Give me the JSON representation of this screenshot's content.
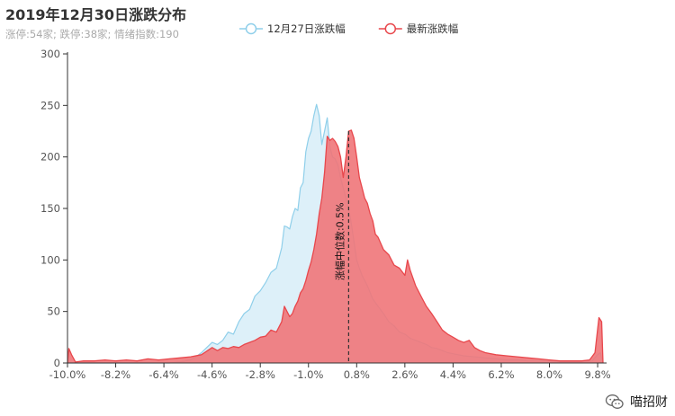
{
  "chart": {
    "title": "2019年12月30日涨跌分布",
    "subtitle": "涨停:54家; 跌停:38家; 情绪指数:190"
  },
  "watermark": {
    "label": "喵招财"
  },
  "colors": {
    "previous": "#8fcfea",
    "previous_fill": "#dbeff9",
    "latest": "#e8474c",
    "latest_fill": "#f07679",
    "axis": "#333333"
  },
  "chart_data": {
    "type": "area",
    "xlabel": "",
    "ylabel": "",
    "xlim": [
      -10.0,
      10.0
    ],
    "ylim": [
      0,
      300
    ],
    "x_ticks": [
      -10.0,
      -8.2,
      -6.4,
      -4.6,
      -2.8,
      -1.0,
      0.8,
      2.6,
      4.4,
      6.2,
      8.0,
      9.8
    ],
    "x_tick_labels": [
      "-10.0%",
      "-8.2%",
      "-6.4%",
      "-4.6%",
      "-2.8%",
      "-1.0%",
      "0.8%",
      "2.6%",
      "4.4%",
      "6.2%",
      "8.0%",
      "9.8%"
    ],
    "y_ticks": [
      0,
      50,
      100,
      150,
      200,
      250,
      300
    ],
    "y_tick_labels": [
      "0",
      "50",
      "100",
      "150",
      "200",
      "250",
      "300"
    ],
    "legend_position": "top-center",
    "median_line": {
      "x": 0.5,
      "label": "涨幅中位数:0.5%"
    },
    "series": [
      {
        "name": "12月27日涨跌幅",
        "color": "#8fcfea",
        "points": [
          [
            -10.0,
            0
          ],
          [
            -9.8,
            0
          ],
          [
            -9.4,
            0
          ],
          [
            -9.0,
            0
          ],
          [
            -8.6,
            0
          ],
          [
            -8.2,
            0
          ],
          [
            -7.8,
            0
          ],
          [
            -7.4,
            0
          ],
          [
            -7.0,
            0
          ],
          [
            -6.6,
            0
          ],
          [
            -6.2,
            0
          ],
          [
            -5.8,
            1
          ],
          [
            -5.4,
            3
          ],
          [
            -5.2,
            6
          ],
          [
            -5.0,
            10
          ],
          [
            -4.8,
            15
          ],
          [
            -4.6,
            20
          ],
          [
            -4.4,
            18
          ],
          [
            -4.2,
            22
          ],
          [
            -4.0,
            30
          ],
          [
            -3.8,
            28
          ],
          [
            -3.6,
            40
          ],
          [
            -3.4,
            48
          ],
          [
            -3.2,
            52
          ],
          [
            -3.0,
            65
          ],
          [
            -2.8,
            70
          ],
          [
            -2.6,
            78
          ],
          [
            -2.4,
            88
          ],
          [
            -2.2,
            92
          ],
          [
            -2.0,
            112
          ],
          [
            -1.9,
            133
          ],
          [
            -1.8,
            132
          ],
          [
            -1.7,
            130
          ],
          [
            -1.6,
            142
          ],
          [
            -1.5,
            150
          ],
          [
            -1.4,
            148
          ],
          [
            -1.3,
            170
          ],
          [
            -1.2,
            175
          ],
          [
            -1.1,
            205
          ],
          [
            -1.0,
            218
          ],
          [
            -0.9,
            225
          ],
          [
            -0.8,
            240
          ],
          [
            -0.7,
            251
          ],
          [
            -0.6,
            240
          ],
          [
            -0.5,
            212
          ],
          [
            -0.4,
            225
          ],
          [
            -0.3,
            238
          ],
          [
            -0.2,
            210
          ],
          [
            -0.1,
            200
          ],
          [
            0.0,
            198
          ],
          [
            0.1,
            192
          ],
          [
            0.2,
            180
          ],
          [
            0.3,
            170
          ],
          [
            0.4,
            160
          ],
          [
            0.5,
            150
          ],
          [
            0.6,
            135
          ],
          [
            0.7,
            118
          ],
          [
            0.8,
            100
          ],
          [
            0.9,
            92
          ],
          [
            1.0,
            85
          ],
          [
            1.2,
            75
          ],
          [
            1.4,
            62
          ],
          [
            1.6,
            55
          ],
          [
            1.8,
            48
          ],
          [
            2.0,
            40
          ],
          [
            2.2,
            36
          ],
          [
            2.4,
            30
          ],
          [
            2.6,
            28
          ],
          [
            2.8,
            24
          ],
          [
            3.0,
            22
          ],
          [
            3.2,
            20
          ],
          [
            3.4,
            18
          ],
          [
            3.6,
            15
          ],
          [
            3.8,
            14
          ],
          [
            4.0,
            12
          ],
          [
            4.2,
            10
          ],
          [
            4.4,
            9
          ],
          [
            4.8,
            7
          ],
          [
            5.2,
            6
          ],
          [
            5.6,
            5
          ],
          [
            6.0,
            4
          ],
          [
            6.4,
            3
          ],
          [
            6.8,
            3
          ],
          [
            7.2,
            2
          ],
          [
            7.6,
            2
          ],
          [
            8.0,
            2
          ],
          [
            8.4,
            1
          ],
          [
            8.8,
            1
          ],
          [
            9.2,
            1
          ],
          [
            9.6,
            2
          ],
          [
            9.8,
            8
          ],
          [
            9.9,
            10
          ],
          [
            10.0,
            0
          ]
        ]
      },
      {
        "name": "最新涨跌幅",
        "color": "#e8474c",
        "points": [
          [
            -10.0,
            0
          ],
          [
            -9.95,
            14
          ],
          [
            -9.85,
            8
          ],
          [
            -9.7,
            1
          ],
          [
            -9.4,
            2
          ],
          [
            -9.0,
            2
          ],
          [
            -8.6,
            3
          ],
          [
            -8.2,
            2
          ],
          [
            -7.8,
            3
          ],
          [
            -7.4,
            2
          ],
          [
            -7.0,
            4
          ],
          [
            -6.6,
            3
          ],
          [
            -6.2,
            4
          ],
          [
            -5.8,
            5
          ],
          [
            -5.4,
            6
          ],
          [
            -5.0,
            8
          ],
          [
            -4.6,
            15
          ],
          [
            -4.4,
            12
          ],
          [
            -4.2,
            15
          ],
          [
            -4.0,
            14
          ],
          [
            -3.8,
            16
          ],
          [
            -3.6,
            15
          ],
          [
            -3.4,
            18
          ],
          [
            -3.2,
            20
          ],
          [
            -3.0,
            22
          ],
          [
            -2.8,
            25
          ],
          [
            -2.6,
            26
          ],
          [
            -2.4,
            32
          ],
          [
            -2.2,
            30
          ],
          [
            -2.0,
            40
          ],
          [
            -1.9,
            55
          ],
          [
            -1.8,
            50
          ],
          [
            -1.7,
            45
          ],
          [
            -1.6,
            48
          ],
          [
            -1.5,
            55
          ],
          [
            -1.4,
            60
          ],
          [
            -1.3,
            68
          ],
          [
            -1.2,
            72
          ],
          [
            -1.1,
            80
          ],
          [
            -1.0,
            90
          ],
          [
            -0.9,
            98
          ],
          [
            -0.8,
            110
          ],
          [
            -0.7,
            125
          ],
          [
            -0.6,
            145
          ],
          [
            -0.5,
            160
          ],
          [
            -0.4,
            185
          ],
          [
            -0.3,
            220
          ],
          [
            -0.2,
            216
          ],
          [
            -0.1,
            218
          ],
          [
            0.0,
            215
          ],
          [
            0.1,
            210
          ],
          [
            0.2,
            200
          ],
          [
            0.3,
            180
          ],
          [
            0.4,
            200
          ],
          [
            0.5,
            225
          ],
          [
            0.6,
            226
          ],
          [
            0.7,
            218
          ],
          [
            0.8,
            200
          ],
          [
            0.9,
            180
          ],
          [
            1.0,
            170
          ],
          [
            1.1,
            160
          ],
          [
            1.2,
            155
          ],
          [
            1.3,
            145
          ],
          [
            1.4,
            138
          ],
          [
            1.5,
            125
          ],
          [
            1.6,
            122
          ],
          [
            1.8,
            110
          ],
          [
            2.0,
            105
          ],
          [
            2.2,
            95
          ],
          [
            2.4,
            92
          ],
          [
            2.6,
            85
          ],
          [
            2.7,
            100
          ],
          [
            2.8,
            90
          ],
          [
            3.0,
            75
          ],
          [
            3.2,
            65
          ],
          [
            3.4,
            55
          ],
          [
            3.6,
            48
          ],
          [
            3.8,
            40
          ],
          [
            4.0,
            32
          ],
          [
            4.2,
            28
          ],
          [
            4.4,
            25
          ],
          [
            4.6,
            22
          ],
          [
            4.8,
            20
          ],
          [
            5.0,
            22
          ],
          [
            5.2,
            15
          ],
          [
            5.4,
            12
          ],
          [
            5.6,
            10
          ],
          [
            6.0,
            8
          ],
          [
            6.4,
            7
          ],
          [
            6.8,
            6
          ],
          [
            7.2,
            5
          ],
          [
            7.6,
            4
          ],
          [
            8.0,
            3
          ],
          [
            8.4,
            2
          ],
          [
            8.8,
            2
          ],
          [
            9.2,
            2
          ],
          [
            9.5,
            3
          ],
          [
            9.7,
            10
          ],
          [
            9.85,
            44
          ],
          [
            9.95,
            40
          ],
          [
            10.0,
            0
          ]
        ]
      }
    ]
  }
}
